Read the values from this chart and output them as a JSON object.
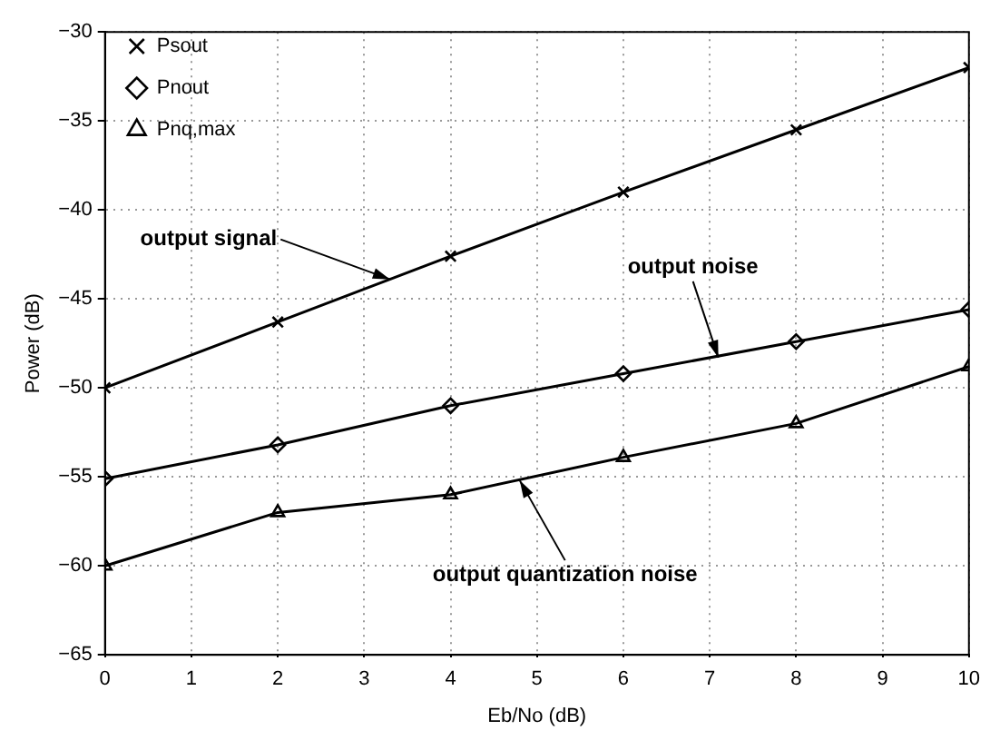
{
  "chart_data": {
    "type": "line",
    "xlabel": "Eb/No (dB)",
    "ylabel": "Power (dB)",
    "x": [
      0,
      2,
      4,
      6,
      8,
      10
    ],
    "series": [
      {
        "name": "Psout",
        "color": "#000000",
        "marker": "cross",
        "values": [
          -50,
          -46.3,
          -42.6,
          -39,
          -35.5,
          -32
        ]
      },
      {
        "name": "Pnout",
        "color": "#000000",
        "marker": "diamond",
        "values": [
          -55.1,
          -53.2,
          -51,
          -49.2,
          -47.4,
          -45.6
        ]
      },
      {
        "name": "Pnq,max",
        "color": "#000000",
        "marker": "triangle",
        "values": [
          -60,
          -57,
          -56,
          -53.9,
          -52,
          -48.8
        ]
      }
    ],
    "xlim": [
      0,
      10
    ],
    "xticks": [
      0,
      1,
      2,
      3,
      4,
      5,
      6,
      7,
      8,
      9,
      10
    ],
    "ylim": [
      -65,
      -30
    ],
    "yticks": [
      -65,
      -60,
      -55,
      -50,
      -45,
      -40,
      -35,
      -30
    ],
    "grid": true,
    "legend": "top left",
    "line_style": "solid",
    "annotations": [
      {
        "text": "output signal",
        "x": 3.3,
        "y": -43.9
      },
      {
        "text": "output noise",
        "x": 7.1,
        "y": -48.3
      },
      {
        "text": "output quantization noise",
        "x": 4.8,
        "y": -55.2
      }
    ]
  }
}
